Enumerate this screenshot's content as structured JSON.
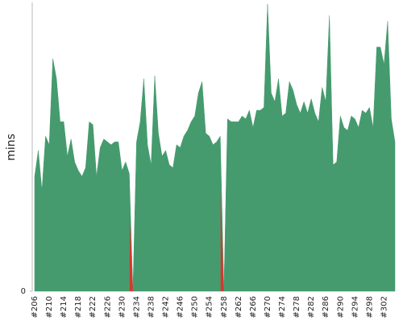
{
  "chart_data": {
    "type": "area",
    "y_label": "mins",
    "categories": [
      "#206",
      null,
      null,
      null,
      "#210",
      null,
      null,
      null,
      "#214",
      null,
      null,
      null,
      "#218",
      null,
      null,
      null,
      "#222",
      null,
      null,
      null,
      "#226",
      null,
      null,
      null,
      "#230",
      null,
      null,
      null,
      "#234",
      null,
      null,
      null,
      "#238",
      null,
      null,
      null,
      "#242",
      null,
      null,
      null,
      "#246",
      null,
      null,
      null,
      "#250",
      null,
      null,
      null,
      "#254",
      null,
      null,
      null,
      "#258",
      null,
      null,
      null,
      "#262",
      null,
      null,
      null,
      "#266",
      null,
      null,
      null,
      "#270",
      null,
      null,
      null,
      "#274",
      null,
      null,
      null,
      "#278",
      null,
      null,
      null,
      "#282",
      null,
      null,
      null,
      "#286",
      null,
      null,
      null,
      "#290",
      null,
      null,
      null,
      "#294",
      null,
      null,
      null,
      "#298",
      null,
      null,
      null,
      "#302",
      null,
      null,
      null
    ],
    "values": [
      40,
      49,
      35,
      54,
      51,
      81,
      74,
      59,
      59,
      47,
      53,
      45,
      42,
      40,
      43,
      59,
      58,
      40,
      50,
      53,
      52,
      51,
      52,
      52,
      42,
      45,
      41,
      0,
      52,
      59,
      74,
      51,
      44,
      75,
      55,
      47,
      49,
      44,
      43,
      51,
      50,
      54,
      56,
      59,
      61,
      69,
      73,
      55,
      54,
      51,
      52,
      54,
      0,
      60,
      59,
      59,
      59,
      61,
      60,
      63,
      57,
      63,
      63,
      64,
      100,
      69,
      66,
      74,
      61,
      62,
      73,
      70,
      65,
      62,
      66,
      62,
      67,
      62,
      59,
      71,
      66,
      96,
      44,
      45,
      61,
      57,
      56,
      61,
      60,
      57,
      63,
      62,
      64,
      57,
      85,
      85,
      79,
      94,
      60,
      52
    ],
    "color": "#459b6e",
    "failure_color": "#d8362f",
    "ylim": [
      0,
      100
    ],
    "yticks": [
      0
    ]
  }
}
